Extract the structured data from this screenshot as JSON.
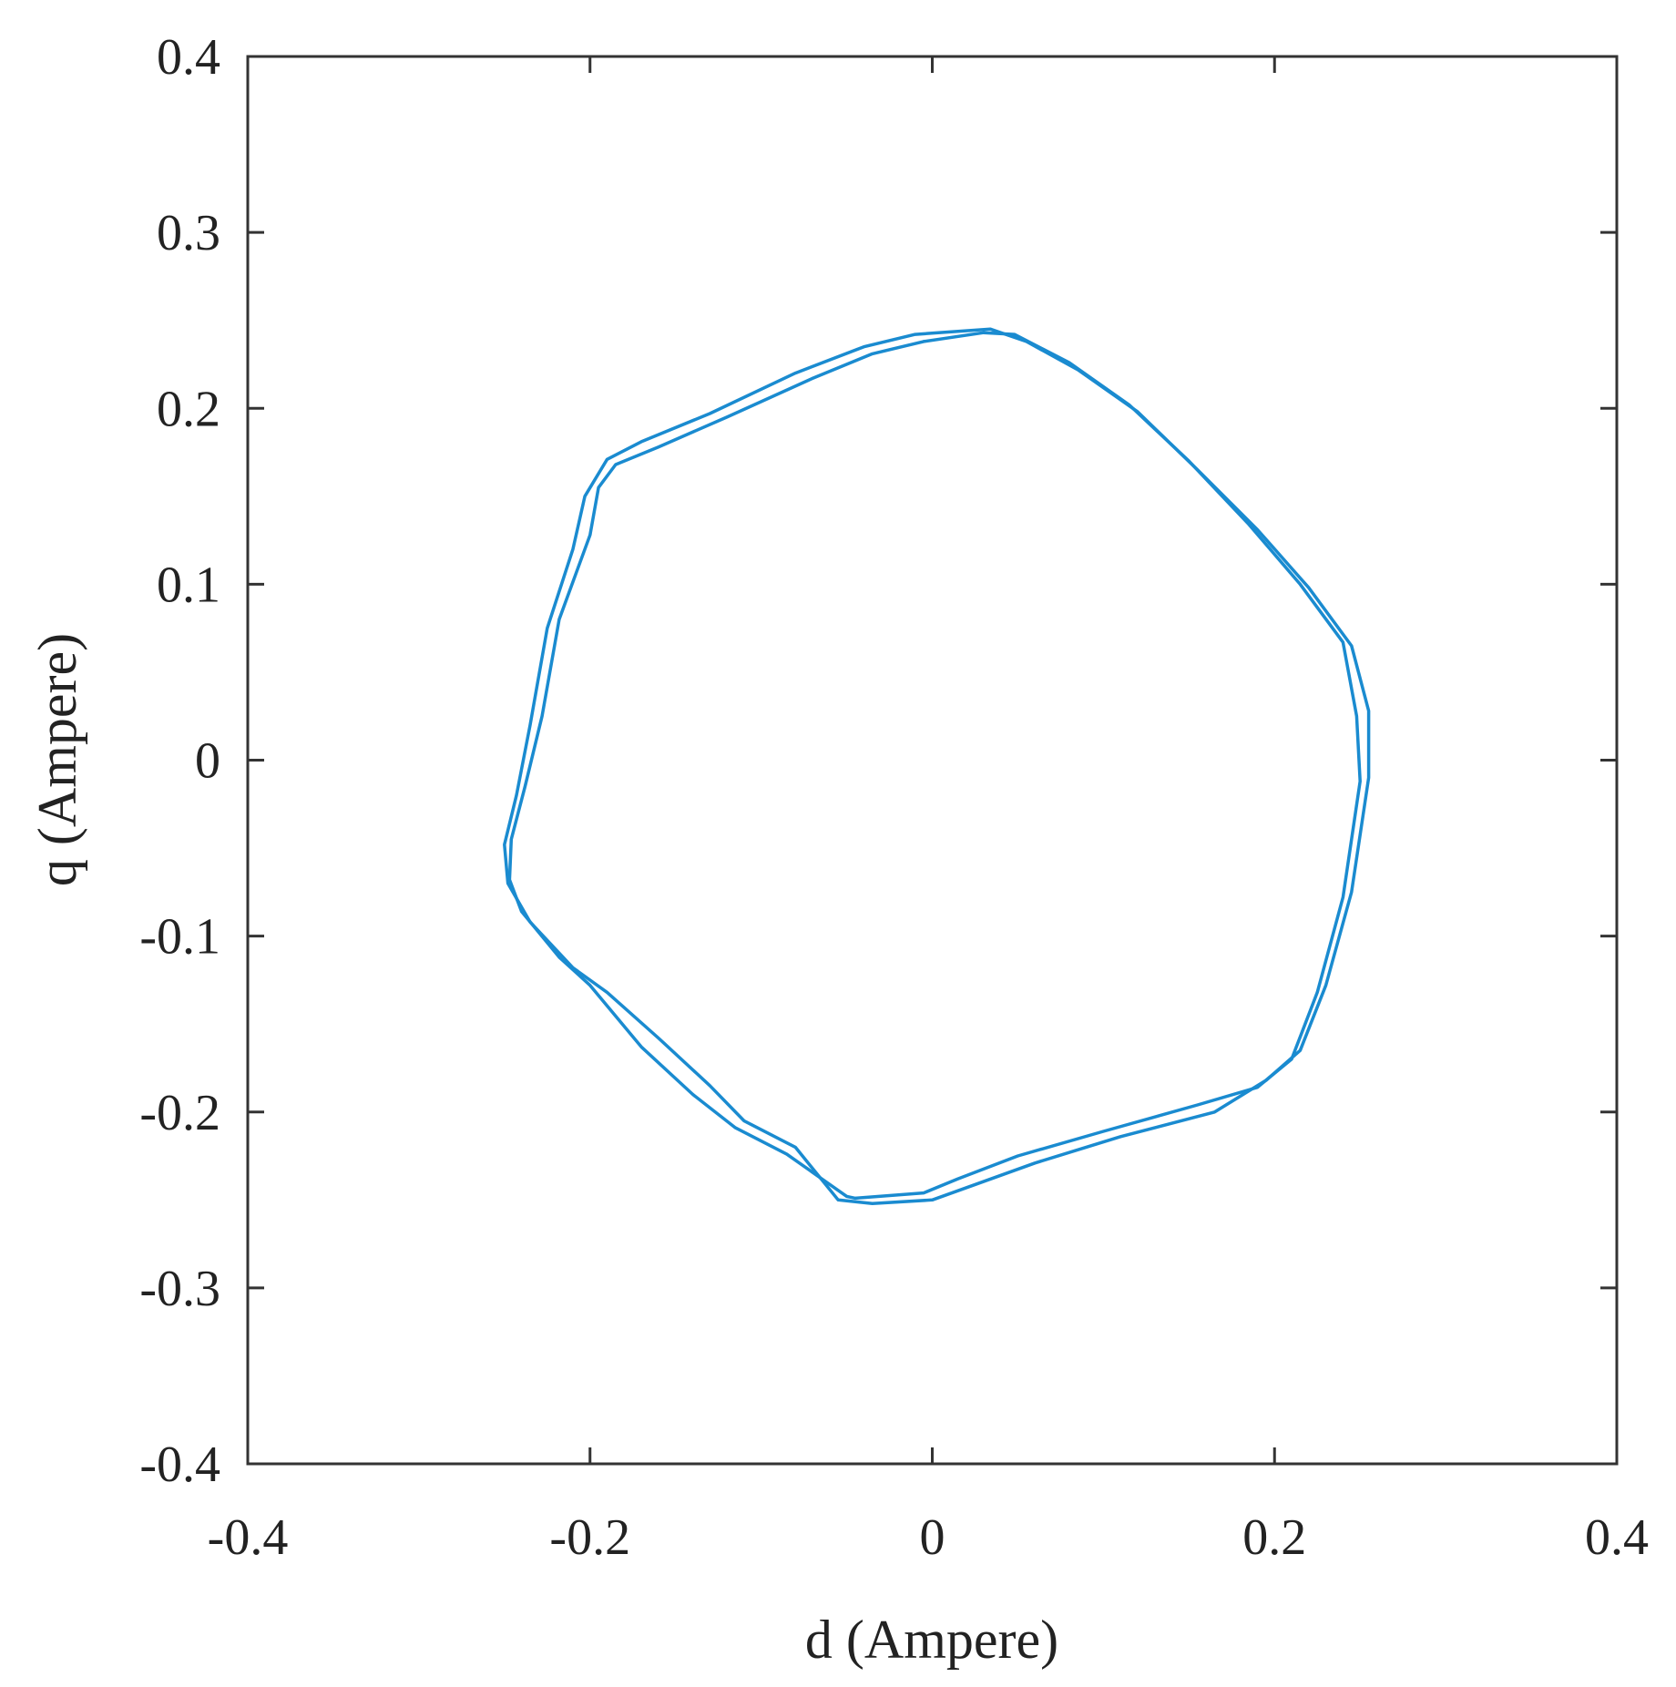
{
  "chart_data": {
    "type": "line",
    "xlabel": "d (Ampere)",
    "ylabel": "q (Ampere)",
    "xlim": [
      -0.4,
      0.4
    ],
    "ylim": [
      -0.4,
      0.4
    ],
    "xticks": [
      "-0.4",
      "-0.2",
      "0",
      "0.2",
      "0.4"
    ],
    "yticks": [
      "0.4",
      "0.3",
      "0.2",
      "0.1",
      "0",
      "-0.1",
      "-0.2",
      "-0.3",
      "-0.4"
    ],
    "xtick_values": [
      -0.4,
      -0.2,
      0,
      0.2,
      0.4
    ],
    "ytick_values": [
      0.4,
      0.3,
      0.2,
      0.1,
      0,
      -0.1,
      -0.2,
      -0.3,
      -0.4
    ],
    "grid": false,
    "colors": {
      "series": "#1a8bd0",
      "axis": "#333333",
      "text": "#222222"
    },
    "series": [
      {
        "x": [
          -0.01,
          0.034,
          0.055,
          0.085,
          0.12,
          0.155,
          0.19,
          0.22,
          0.245,
          0.255,
          0.255,
          0.245,
          0.23,
          0.215,
          0.195,
          0.165,
          0.11,
          0.06,
          0.02,
          0.0,
          -0.035,
          -0.055,
          -0.08,
          -0.11,
          -0.13,
          -0.16,
          -0.19,
          -0.21,
          -0.235,
          -0.248,
          -0.25,
          -0.243,
          -0.235,
          -0.225,
          -0.21,
          -0.203,
          -0.19,
          -0.17,
          -0.13,
          -0.08,
          -0.04,
          -0.01
        ],
        "y": [
          0.242,
          0.245,
          0.238,
          0.222,
          0.198,
          0.165,
          0.131,
          0.098,
          0.065,
          0.028,
          -0.01,
          -0.075,
          -0.128,
          -0.165,
          -0.182,
          -0.2,
          -0.214,
          -0.229,
          -0.243,
          -0.25,
          -0.252,
          -0.25,
          -0.22,
          -0.205,
          -0.185,
          -0.158,
          -0.132,
          -0.118,
          -0.092,
          -0.07,
          -0.048,
          -0.02,
          0.02,
          0.075,
          0.12,
          0.15,
          0.171,
          0.181,
          0.197,
          0.22,
          0.235,
          0.242
        ]
      },
      {
        "x": [
          -0.005,
          0.03,
          0.048,
          0.08,
          0.115,
          0.15,
          0.185,
          0.215,
          0.24,
          0.248,
          0.25,
          0.24,
          0.225,
          0.21,
          0.19,
          0.155,
          0.1,
          0.05,
          0.015,
          -0.005,
          -0.045,
          -0.05,
          -0.085,
          -0.115,
          -0.14,
          -0.17,
          -0.2,
          -0.218,
          -0.24,
          -0.247,
          -0.246,
          -0.238,
          -0.228,
          -0.218,
          -0.2,
          -0.195,
          -0.185,
          -0.16,
          -0.12,
          -0.07,
          -0.035,
          -0.005
        ],
        "y": [
          0.238,
          0.243,
          0.242,
          0.226,
          0.202,
          0.17,
          0.134,
          0.1,
          0.067,
          0.025,
          -0.012,
          -0.078,
          -0.132,
          -0.17,
          -0.186,
          -0.196,
          -0.211,
          -0.225,
          -0.238,
          -0.246,
          -0.249,
          -0.248,
          -0.224,
          -0.209,
          -0.19,
          -0.163,
          -0.128,
          -0.112,
          -0.086,
          -0.068,
          -0.045,
          -0.015,
          0.025,
          0.08,
          0.128,
          0.155,
          0.168,
          0.178,
          0.195,
          0.217,
          0.231,
          0.238
        ]
      }
    ]
  }
}
